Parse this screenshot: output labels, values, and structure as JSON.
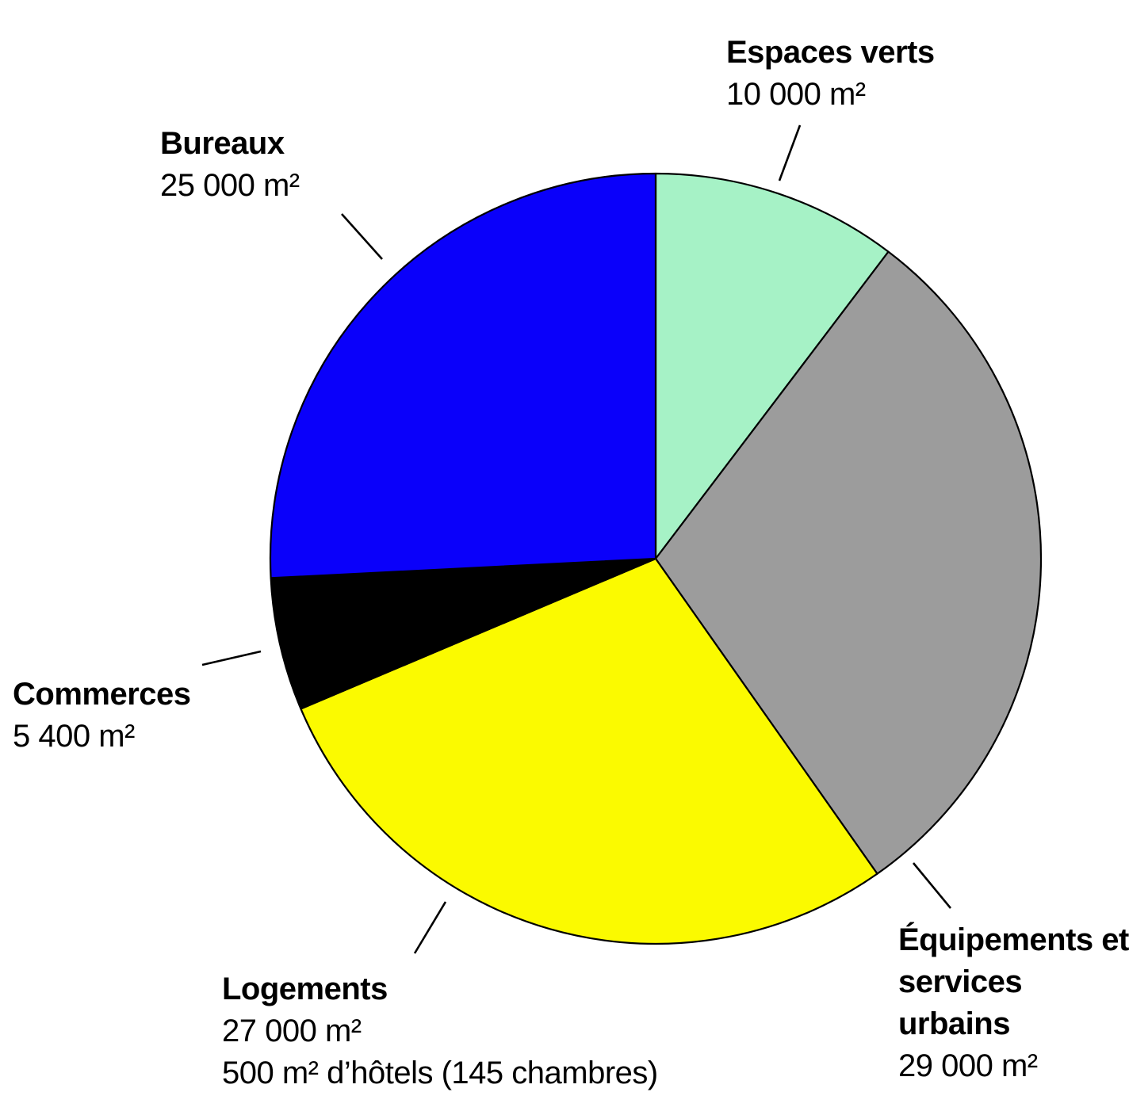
{
  "chart_data": {
    "type": "pie",
    "title": "",
    "unit": "m²",
    "start_angle_deg": 0,
    "clockwise": true,
    "stroke_color": "#000000",
    "background_color": "#ffffff",
    "slices": [
      {
        "id": "espaces-verts",
        "name": "Espaces verts",
        "value": 10000,
        "value_label": "10 000 m²",
        "color": "#a6f2c6"
      },
      {
        "id": "equipements-services-urbains",
        "name": "Équipements et services urbains",
        "value": 29000,
        "value_label": "29 000 m²",
        "color": "#9c9c9c"
      },
      {
        "id": "logements",
        "name": "Logements",
        "value": 27000,
        "value_label": "27 000 m²",
        "extra_value": 500,
        "extra_label": "500 m² d’hôtels (145 chambres)",
        "color": "#fbfa00"
      },
      {
        "id": "commerces",
        "name": "Commerces",
        "value": 5400,
        "value_label": "5 400 m²",
        "color": "#000000"
      },
      {
        "id": "bureaux",
        "name": "Bureaux",
        "value": 25000,
        "value_label": "25 000 m²",
        "color": "#0a00fa"
      }
    ]
  }
}
